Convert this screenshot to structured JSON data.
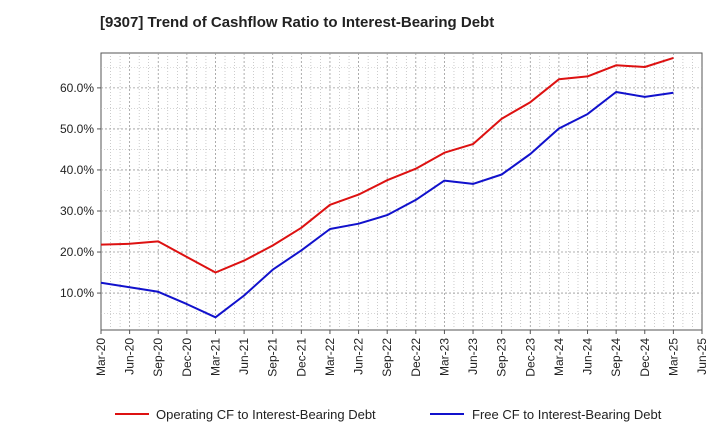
{
  "chart_data": {
    "type": "line",
    "title": "[9307]  Trend of Cashflow Ratio to Interest-Bearing Debt",
    "xlabel": "",
    "ylabel": "",
    "x_tick_labels": [
      "Mar-20",
      "Jun-20",
      "Sep-20",
      "Dec-20",
      "Mar-21",
      "Jun-21",
      "Sep-21",
      "Dec-21",
      "Mar-22",
      "Jun-22",
      "Sep-22",
      "Dec-22",
      "Mar-23",
      "Jun-23",
      "Sep-23",
      "Dec-23",
      "Mar-24",
      "Jun-24",
      "Sep-24",
      "Dec-24",
      "Mar-25",
      "Jun-25"
    ],
    "y_tick_values": [
      10,
      20,
      30,
      40,
      50,
      60
    ],
    "y_tick_labels": [
      "10.0%",
      "20.0%",
      "30.0%",
      "40.0%",
      "50.0%",
      "60.0%"
    ],
    "ylim": [
      1,
      68.5
    ],
    "grid": true,
    "legend_position": "bottom",
    "series": [
      {
        "name": "Operating CF to Interest-Bearing Debt",
        "color": "#dd1111",
        "x": [
          "Mar-20",
          "Jun-20",
          "Sep-20",
          "Dec-20",
          "Mar-21",
          "Jun-21",
          "Sep-21",
          "Dec-21",
          "Mar-22",
          "Jun-22",
          "Sep-22",
          "Dec-22",
          "Mar-23",
          "Jun-23",
          "Sep-23",
          "Dec-23",
          "Mar-24",
          "Jun-24",
          "Sep-24",
          "Dec-24",
          "Mar-25"
        ],
        "values": [
          21.8,
          22.0,
          22.6,
          18.8,
          15.0,
          17.9,
          21.6,
          25.9,
          31.5,
          34.0,
          37.5,
          40.3,
          44.2,
          46.3,
          52.5,
          56.5,
          62.1,
          62.8,
          65.5,
          65.1,
          67.3
        ]
      },
      {
        "name": "Free CF to Interest-Bearing Debt",
        "color": "#1111cc",
        "x": [
          "Mar-20",
          "Jun-20",
          "Sep-20",
          "Dec-20",
          "Mar-21",
          "Jun-21",
          "Sep-21",
          "Dec-21",
          "Mar-22",
          "Jun-22",
          "Sep-22",
          "Dec-22",
          "Mar-23",
          "Jun-23",
          "Sep-23",
          "Dec-23",
          "Mar-24",
          "Jun-24",
          "Sep-24",
          "Dec-24",
          "Mar-25"
        ],
        "values": [
          12.5,
          11.4,
          10.3,
          7.3,
          4.1,
          9.4,
          15.7,
          20.4,
          25.6,
          26.9,
          29.0,
          32.7,
          37.4,
          36.6,
          38.9,
          43.9,
          50.1,
          53.6,
          59.0,
          57.8,
          58.8
        ]
      }
    ]
  }
}
